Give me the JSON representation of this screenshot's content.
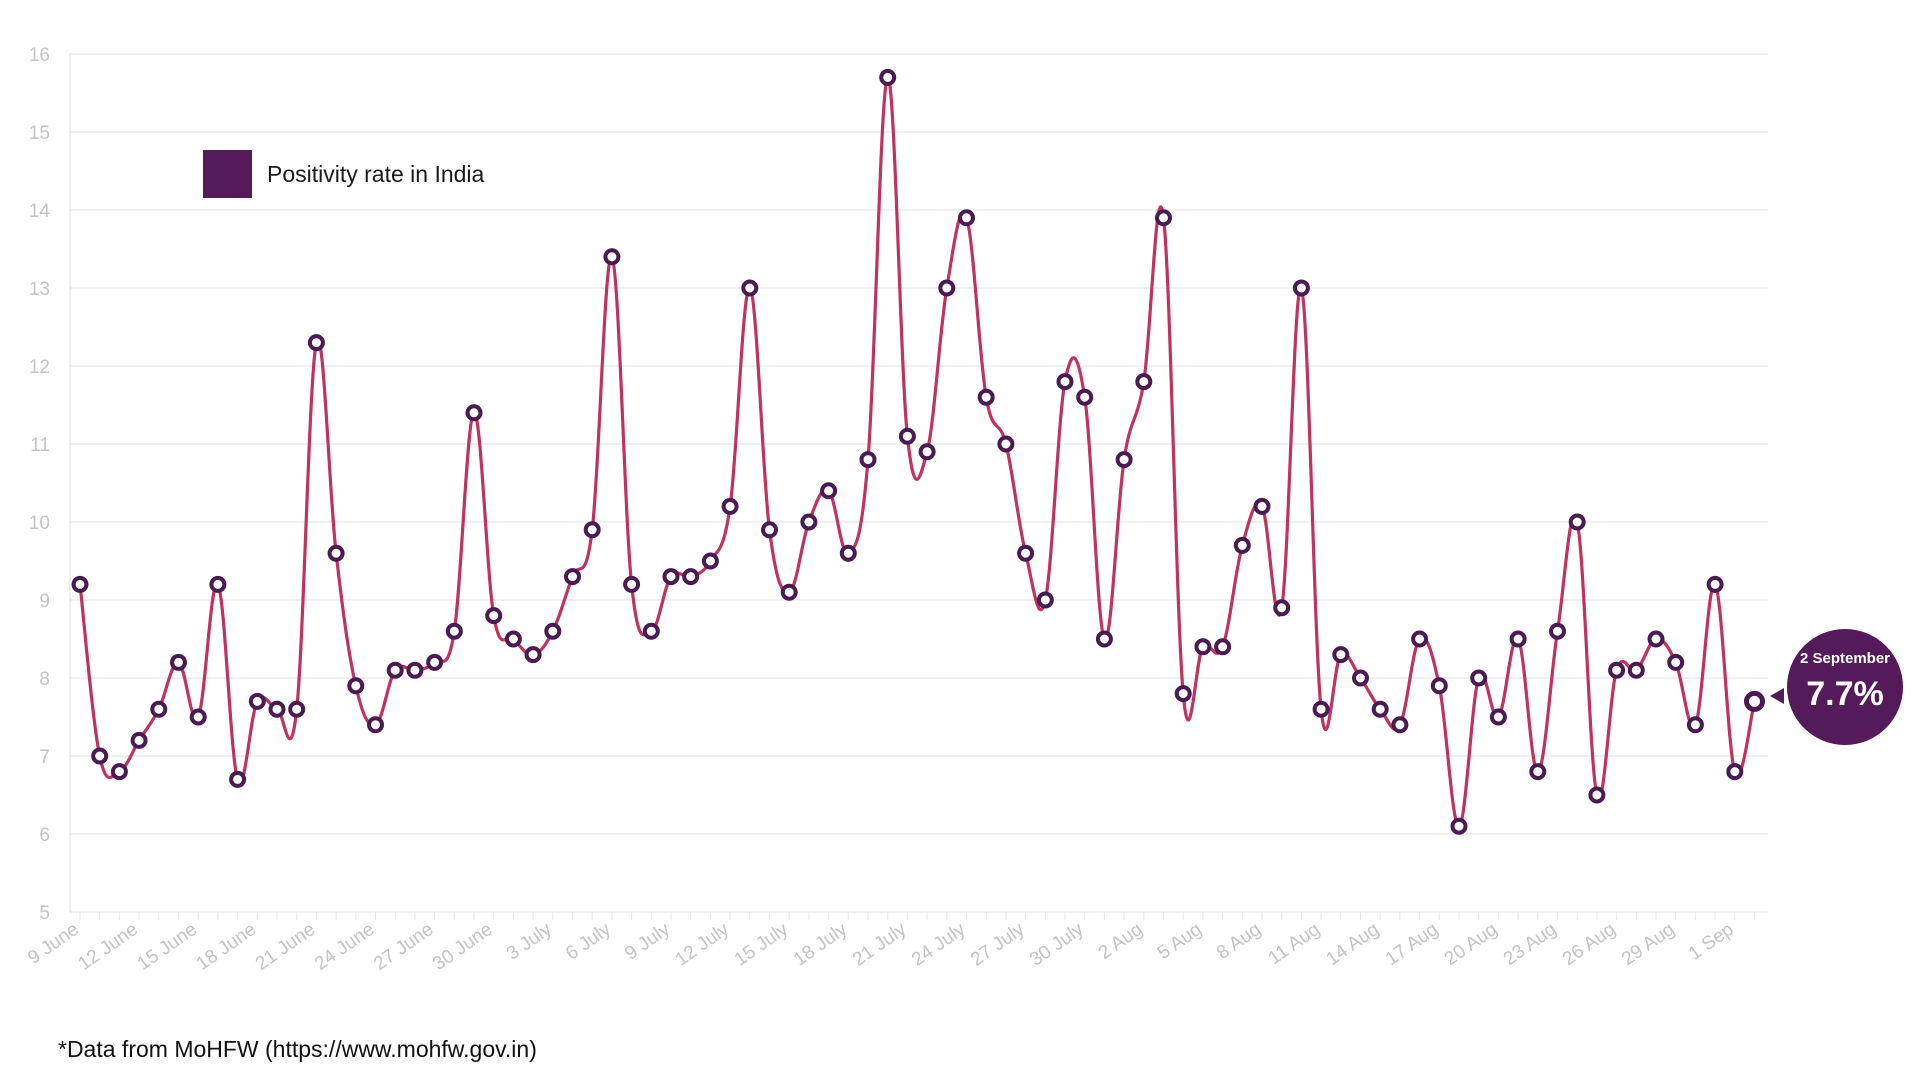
{
  "colors": {
    "line": "#c0335e",
    "marker": "#4a1a52",
    "grid": "#e6e6e6",
    "tick_text": "#c4c4c4",
    "callout_bg": "#541a5a"
  },
  "source_note": "*Data from MoHFW (https://www.mohfw.gov.in)",
  "callout": {
    "date": "2 September",
    "value": "7.7%"
  },
  "chart_data": {
    "type": "line",
    "title": "",
    "xlabel": "",
    "ylabel": "",
    "ylim": [
      5,
      16
    ],
    "yticks": [
      5,
      6,
      7,
      8,
      9,
      10,
      11,
      12,
      13,
      14,
      15,
      16
    ],
    "grid": true,
    "legend": {
      "position": "top-left",
      "label": "Positivity rate in India"
    },
    "x_tick_labels": [
      {
        "index": 0,
        "label": "9 June"
      },
      {
        "index": 3,
        "label": "12 June"
      },
      {
        "index": 6,
        "label": "15 June"
      },
      {
        "index": 9,
        "label": "18 June"
      },
      {
        "index": 12,
        "label": "21 June"
      },
      {
        "index": 15,
        "label": "24 June"
      },
      {
        "index": 18,
        "label": "27 June"
      },
      {
        "index": 21,
        "label": "30 June"
      },
      {
        "index": 24,
        "label": "3 July"
      },
      {
        "index": 27,
        "label": "6 July"
      },
      {
        "index": 30,
        "label": "9 July"
      },
      {
        "index": 33,
        "label": "12 July"
      },
      {
        "index": 36,
        "label": "15 July"
      },
      {
        "index": 39,
        "label": "18 July"
      },
      {
        "index": 42,
        "label": "21 July"
      },
      {
        "index": 45,
        "label": "24 July"
      },
      {
        "index": 48,
        "label": "27 July"
      },
      {
        "index": 51,
        "label": "30 July"
      },
      {
        "index": 54,
        "label": "2 Aug"
      },
      {
        "index": 57,
        "label": "5 Aug"
      },
      {
        "index": 60,
        "label": "8 Aug"
      },
      {
        "index": 63,
        "label": "11 Aug"
      },
      {
        "index": 66,
        "label": "14 Aug"
      },
      {
        "index": 69,
        "label": "17 Aug"
      },
      {
        "index": 72,
        "label": "20 Aug"
      },
      {
        "index": 75,
        "label": "23 Aug"
      },
      {
        "index": 78,
        "label": "26 Aug"
      },
      {
        "index": 81,
        "label": "29 Aug"
      },
      {
        "index": 84,
        "label": "1 Sep"
      }
    ],
    "series": [
      {
        "name": "Positivity rate in India",
        "values": [
          9.2,
          7.0,
          6.8,
          7.2,
          7.6,
          8.2,
          7.5,
          9.2,
          6.7,
          7.7,
          7.6,
          7.6,
          12.3,
          9.6,
          7.9,
          7.4,
          8.1,
          8.1,
          8.2,
          8.6,
          11.4,
          8.8,
          8.5,
          8.3,
          8.6,
          9.3,
          9.9,
          13.4,
          9.2,
          8.6,
          9.3,
          9.3,
          9.5,
          10.2,
          13.0,
          9.9,
          9.1,
          10.0,
          10.4,
          9.6,
          10.8,
          15.7,
          11.1,
          10.9,
          13.0,
          13.9,
          11.6,
          11.0,
          9.6,
          9.0,
          11.8,
          11.6,
          8.5,
          10.8,
          11.8,
          13.9,
          7.8,
          8.4,
          8.4,
          9.7,
          10.2,
          8.9,
          13.0,
          7.6,
          8.3,
          8.0,
          7.6,
          7.4,
          8.5,
          7.9,
          6.1,
          8.0,
          7.5,
          8.5,
          6.8,
          8.6,
          10.0,
          6.5,
          8.1,
          8.1,
          8.5,
          8.2,
          7.4,
          9.2,
          6.8,
          7.7
        ]
      }
    ]
  }
}
